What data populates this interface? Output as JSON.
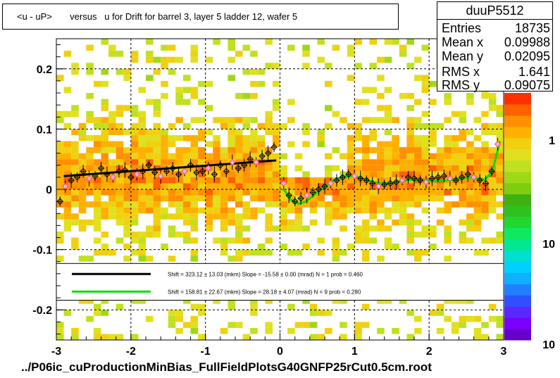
{
  "title": "<u - uP>       versus   u for Drift for barrel 3, layer 5 ladder 12, wafer 5",
  "footer": "../P06ic_cuProductionMinBias_FullFieldPlotsG40GNFP25rCut0.5cm.root",
  "stats": {
    "name": "duuP5512",
    "rows": [
      {
        "label": "Entries",
        "value": "18735"
      },
      {
        "label": "Mean x",
        "value": "0.09988"
      },
      {
        "label": "Mean y",
        "value": "0.02095"
      },
      {
        "label": "RMS x",
        "value": "1.641"
      },
      {
        "label": "RMS y",
        "value": "0.09075"
      }
    ]
  },
  "legend": [
    {
      "text": "Shift =   323.12 ± 13.03 (mkm) Slope =   -15.58 ± 0.00 (mrad)  N = 1 prob = 0.460",
      "color": "#000000"
    },
    {
      "text": "Shift =   158.81 ± 22.67 (mkm) Slope =    28.18 ± 4.07 (mrad)  N = 9 prob = 0.280",
      "color": "#00e000"
    }
  ],
  "colorbar": {
    "labels": [
      "1",
      "10",
      "10"
    ],
    "colors": [
      "#6600cc",
      "#7a00ff",
      "#5a28ff",
      "#3050ff",
      "#2080ff",
      "#10b0ff",
      "#00d0ff",
      "#00e0d0",
      "#00e890",
      "#10e860",
      "#20d830",
      "#30c020",
      "#40b010",
      "#80cc10",
      "#a0d818",
      "#c0e020",
      "#e0e020",
      "#f0d010",
      "#ffb000",
      "#ff9000",
      "#ff6000",
      "#ff3000"
    ]
  },
  "chart_data": {
    "type": "heatmap",
    "title": "<u - uP>       versus   u for Drift for barrel 3, layer 5 ladder 12, wafer 5",
    "xlabel": "",
    "ylabel": "",
    "xlim": [
      -3,
      3
    ],
    "ylim": [
      -0.25,
      0.25
    ],
    "x_ticks": [
      -3,
      -2,
      -1,
      0,
      1,
      2,
      3
    ],
    "y_ticks": [
      -0.2,
      -0.1,
      0,
      0.1,
      0.2
    ],
    "x_tick_labels": [
      "-3",
      "-2",
      "-1",
      "0",
      "1",
      "2",
      "3"
    ],
    "y_tick_labels": [
      "-0.2",
      "-0.1",
      "0",
      "0.1",
      "0.2"
    ],
    "grid": true,
    "series": [
      {
        "kind": "profile-points",
        "x": [
          -2.95,
          -2.88,
          -2.8,
          -2.72,
          -2.64,
          -2.56,
          -2.48,
          -2.4,
          -2.32,
          -2.24,
          -2.16,
          -2.08,
          -2.0,
          -1.92,
          -1.84,
          -1.76,
          -1.68,
          -1.6,
          -1.52,
          -1.44,
          -1.36,
          -1.28,
          -1.2,
          -1.12,
          -1.04,
          -0.96,
          -0.88,
          -0.8,
          -0.72,
          -0.64,
          -0.56,
          -0.48,
          -0.4,
          -0.32,
          -0.24,
          -0.16,
          -0.08,
          0.05,
          0.12,
          0.2,
          0.28,
          0.36,
          0.44,
          0.52,
          0.6,
          0.68,
          0.76,
          0.84,
          0.92,
          1.0,
          1.08,
          1.16,
          1.24,
          1.32,
          1.4,
          1.48,
          1.56,
          1.64,
          1.72,
          1.8,
          1.88,
          1.96,
          2.04,
          2.12,
          2.2,
          2.28,
          2.36,
          2.44,
          2.52,
          2.6,
          2.68,
          2.76,
          2.84,
          2.92
        ],
        "y": [
          -0.02,
          0.005,
          0.015,
          0.02,
          0.03,
          0.018,
          0.022,
          0.035,
          0.025,
          0.02,
          0.03,
          0.032,
          0.02,
          0.025,
          0.03,
          0.04,
          0.028,
          0.022,
          0.03,
          0.035,
          0.025,
          0.03,
          0.04,
          0.028,
          0.03,
          0.035,
          0.025,
          0.04,
          0.03,
          0.045,
          0.035,
          0.04,
          0.05,
          0.045,
          0.055,
          0.06,
          0.07,
          0.01,
          -0.01,
          -0.02,
          -0.015,
          -0.01,
          -0.005,
          0.0,
          0.005,
          0.01,
          0.015,
          0.02,
          0.025,
          0.022,
          0.018,
          0.015,
          0.01,
          0.005,
          0.008,
          0.01,
          0.012,
          0.015,
          0.02,
          0.018,
          0.015,
          0.012,
          0.018,
          0.02,
          0.022,
          0.018,
          0.015,
          0.02,
          0.025,
          0.02,
          0.015,
          0.01,
          0.03,
          0.075
        ]
      },
      {
        "kind": "fit",
        "name": "",
        "x": [
          -2.9,
          -0.05
        ],
        "y": [
          0.022,
          0.048
        ],
        "color": "#000000"
      },
      {
        "kind": "fit",
        "name": "",
        "x": [
          0.05,
          0.15,
          0.25,
          0.35,
          0.45,
          0.55,
          0.65,
          0.75,
          0.85,
          0.95,
          1.05,
          1.15,
          1.25,
          1.35,
          1.45,
          1.55,
          1.65,
          1.75,
          1.85,
          1.95,
          2.05,
          2.15,
          2.25,
          2.35,
          2.45,
          2.55,
          2.65,
          2.75,
          2.85,
          2.95
        ],
        "y": [
          0.0,
          -0.018,
          -0.024,
          -0.02,
          -0.01,
          0.0,
          0.01,
          0.017,
          0.021,
          0.022,
          0.02,
          0.016,
          0.012,
          0.01,
          0.01,
          0.012,
          0.014,
          0.016,
          0.016,
          0.015,
          0.014,
          0.014,
          0.015,
          0.017,
          0.019,
          0.02,
          0.018,
          0.016,
          0.03,
          0.08
        ],
        "color": "#00e000"
      }
    ]
  }
}
